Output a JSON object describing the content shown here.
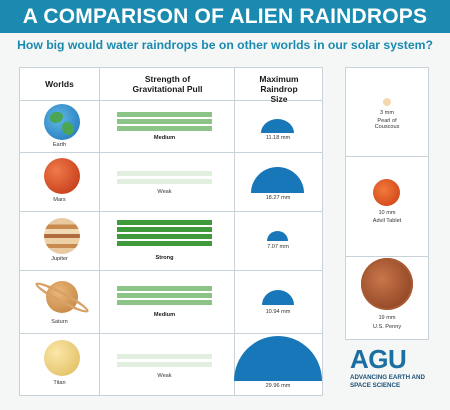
{
  "title": "A COMPARISON OF ALIEN RAINDROPS",
  "subtitle": "How big would water raindrops be on other worlds in our solar system?",
  "headers": {
    "worlds": "Worlds",
    "gravity": "Strength of Gravitational Pull",
    "raindrop": "Maximum Raindrop Size"
  },
  "rows": [
    {
      "world": "Earth",
      "gravity": "Medium",
      "size": "11.18 mm",
      "size_mm": 11.18,
      "bold": true
    },
    {
      "world": "Mars",
      "gravity": "Weak",
      "size": "18.27 mm",
      "size_mm": 18.27,
      "bold": false
    },
    {
      "world": "Jupiter",
      "gravity": "Strong",
      "size": "7.07 mm",
      "size_mm": 7.07,
      "bold": true
    },
    {
      "world": "Saturn",
      "gravity": "Medium",
      "size": "10.94 mm",
      "size_mm": 10.94,
      "bold": true
    },
    {
      "world": "Titan",
      "gravity": "Weak",
      "size": "29.96 mm",
      "size_mm": 29.96,
      "bold": false
    }
  ],
  "comparisons": [
    {
      "size": "3 mm",
      "label": "Pearl of Couscous"
    },
    {
      "size": "10 mm",
      "label": "Advil Tablet"
    },
    {
      "size": "19 mm",
      "label": "U.S. Penny"
    }
  ],
  "logo": {
    "name": "AGU",
    "tagline": "ADVANCING EARTH AND SPACE SCIENCE"
  },
  "colors": {
    "title_bg": "#1b8ab0",
    "drop": "#1777b8",
    "strong_bar": "#3f9b3a",
    "medium_bar": "#8cc488",
    "weak_bar": "#e1efdf"
  }
}
